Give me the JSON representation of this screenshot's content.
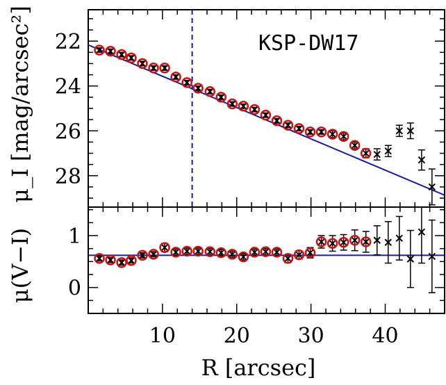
{
  "chart_data": [
    {
      "type": "scatter",
      "panel": "top",
      "title": "KSP-DW17",
      "ylabel": "μ_I [mag/arcsec²]",
      "xlabel": "",
      "xlim": [
        0,
        48
      ],
      "ylim": [
        29.4,
        20.6
      ],
      "y_inverted": true,
      "yticks": [
        22,
        24,
        26,
        28
      ],
      "reference_line_x": 14,
      "fit_line": {
        "x": [
          0,
          48
        ],
        "y": [
          22.17,
          28.87
        ]
      },
      "series": [
        {
          "marker": "circle+cross",
          "color": "#cc1111",
          "x": [
            1.5,
            3.0,
            4.5,
            5.8,
            7.3,
            8.8,
            10.3,
            11.8,
            13.3,
            14.8,
            16.4,
            17.9,
            19.4,
            20.9,
            22.4,
            23.9,
            25.4,
            26.9,
            28.4,
            29.9,
            31.4,
            32.9,
            34.4,
            35.9,
            37.4
          ],
          "y": [
            22.4,
            22.45,
            22.6,
            22.75,
            23.0,
            23.2,
            23.2,
            23.6,
            23.85,
            24.1,
            24.25,
            24.5,
            24.8,
            24.9,
            25.05,
            25.3,
            25.55,
            25.75,
            25.9,
            26.05,
            26.05,
            26.15,
            26.25,
            26.65,
            27.0
          ],
          "yerr": [
            0.1,
            0.1,
            0.1,
            0.1,
            0.1,
            0.1,
            0.1,
            0.1,
            0.1,
            0.1,
            0.1,
            0.1,
            0.1,
            0.1,
            0.1,
            0.1,
            0.1,
            0.1,
            0.1,
            0.1,
            0.1,
            0.15,
            0.15,
            0.15,
            0.2
          ]
        },
        {
          "marker": "cross",
          "color": "#000000",
          "x": [
            38.9,
            40.4,
            41.9,
            43.4,
            44.9,
            46.3
          ],
          "y": [
            27.05,
            26.9,
            26.0,
            26.0,
            27.3,
            28.5
          ],
          "yerr": [
            0.25,
            0.25,
            0.25,
            0.35,
            0.45,
            0.8
          ]
        }
      ]
    },
    {
      "type": "scatter",
      "panel": "bottom",
      "ylabel": "μ(V−I)",
      "xlabel": "R [arcsec]",
      "xlim": [
        0,
        48
      ],
      "ylim": [
        -0.5,
        1.55
      ],
      "yticks": [
        0,
        1
      ],
      "xticks": [
        10,
        20,
        30,
        40
      ],
      "fit_line": {
        "x": [
          0,
          48
        ],
        "y": [
          0.62,
          0.62
        ]
      },
      "series": [
        {
          "marker": "circle+cross",
          "color": "#cc1111",
          "x": [
            1.5,
            3.0,
            4.5,
            5.8,
            7.3,
            8.8,
            10.3,
            11.8,
            13.3,
            14.8,
            16.4,
            17.9,
            19.4,
            20.9,
            22.4,
            23.9,
            25.4,
            26.9,
            28.4,
            29.9,
            31.4,
            32.9,
            34.4,
            35.9,
            37.4
          ],
          "y": [
            0.56,
            0.53,
            0.48,
            0.52,
            0.62,
            0.64,
            0.77,
            0.68,
            0.7,
            0.7,
            0.69,
            0.67,
            0.64,
            0.59,
            0.68,
            0.69,
            0.68,
            0.56,
            0.63,
            0.67,
            0.88,
            0.85,
            0.87,
            0.91,
            0.88
          ],
          "yerr": [
            0.05,
            0.05,
            0.05,
            0.05,
            0.05,
            0.05,
            0.08,
            0.06,
            0.06,
            0.06,
            0.06,
            0.06,
            0.06,
            0.06,
            0.06,
            0.06,
            0.06,
            0.08,
            0.08,
            0.1,
            0.12,
            0.15,
            0.15,
            0.2,
            0.2
          ]
        },
        {
          "marker": "cross",
          "color": "#000000",
          "x": [
            38.9,
            40.4,
            41.9,
            43.4,
            44.9,
            46.3
          ],
          "y": [
            0.91,
            0.87,
            0.95,
            0.55,
            1.07,
            0.6
          ],
          "yerr": [
            0.28,
            0.4,
            0.42,
            0.55,
            0.6,
            0.7
          ]
        }
      ]
    }
  ],
  "colors": {
    "axes": "#000000",
    "fit_line": "#1a1aaa",
    "reference_line": "#1a1aaa",
    "circle": "#cc1111",
    "cross": "#000000"
  }
}
